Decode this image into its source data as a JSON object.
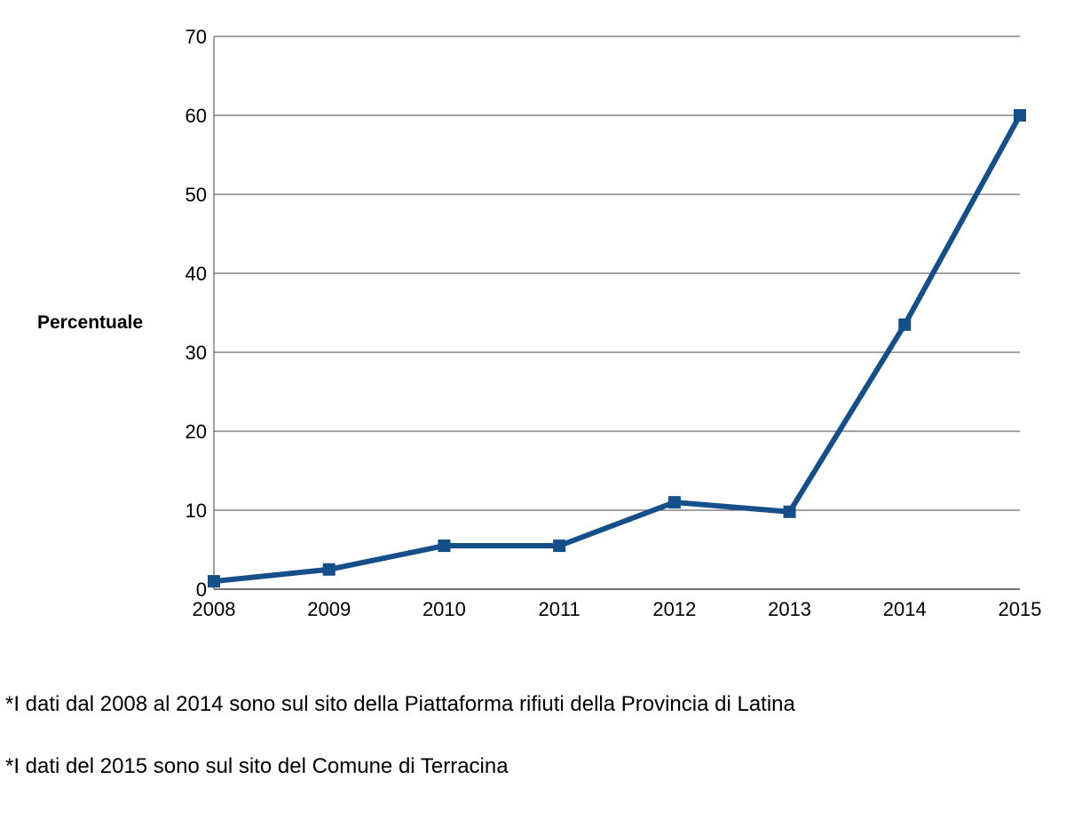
{
  "chart_data": {
    "type": "line",
    "title": "",
    "xlabel": "",
    "ylabel": "Percentuale",
    "categories": [
      "2008",
      "2009",
      "2010",
      "2011",
      "2012",
      "2013",
      "2014",
      "2015"
    ],
    "series": [
      {
        "name": "Percentuale",
        "values": [
          1,
          2.5,
          5.5,
          5.5,
          11,
          9.8,
          33.5,
          60
        ]
      }
    ],
    "ylim": [
      0,
      70
    ],
    "yticks": [
      0,
      10,
      20,
      30,
      40,
      50,
      60,
      70
    ],
    "grid": true,
    "legend": "none",
    "line_color": "#144f8a"
  },
  "notes": {
    "line1": "*I dati dal 2008 al 2014 sono sul sito della Piattaforma rifiuti della Provincia di Latina",
    "line2": "*I dati del 2015 sono sul sito del Comune di Terracina"
  }
}
